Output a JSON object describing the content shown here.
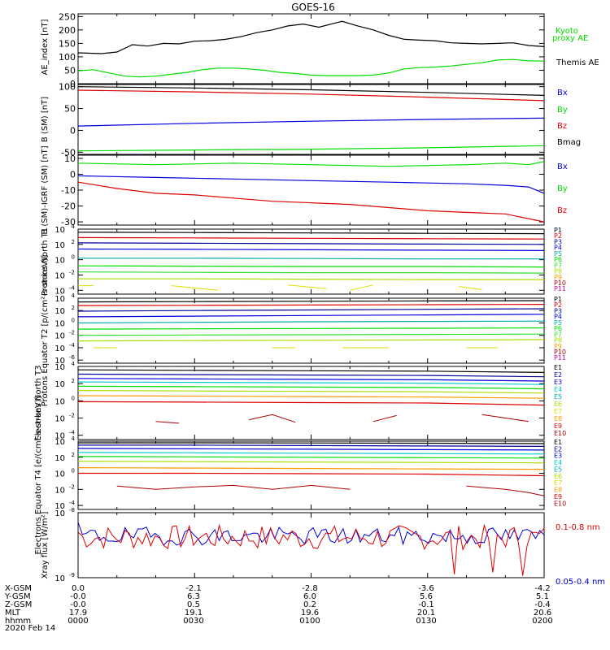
{
  "title": "GOES-16",
  "date_label": "2020 Feb 14",
  "ephemeris": {
    "row_labels": [
      "X-GSM",
      "Y-GSM",
      "Z-GSM",
      "MLT",
      "hhmm"
    ],
    "columns": [
      [
        "0.0",
        "-0.0",
        "-0.0",
        "17.9",
        "0000"
      ],
      [
        "-2.1",
        "6.3",
        "0.5",
        "19.1",
        "0030"
      ],
      [
        "-2.8",
        "6.0",
        "0.2",
        "19.6",
        "0100"
      ],
      [
        "-3.6",
        "5.6",
        "-0.1",
        "20.1",
        "0130"
      ],
      [
        "-4.2",
        "5.1",
        "-0.4",
        "20.6",
        "0200"
      ]
    ]
  },
  "colors": {
    "black": "#000000",
    "green": "#00dd00",
    "blue": "#0000dd",
    "red": "#dd0000",
    "navy": "#000099",
    "teal": "#00aaaa",
    "cyan": "#00cccc",
    "lime": "#33dd33",
    "yellowgreen": "#aadd00",
    "yellow": "#dddd00",
    "orange": "#ff9900",
    "darkred": "#aa0000",
    "magenta": "#cc00aa"
  },
  "chart_data": [
    {
      "type": "line",
      "panel": "ae",
      "ylabel": "AE_index [nT]",
      "ylim": [
        0,
        260
      ],
      "yticks": [
        0,
        50,
        100,
        150,
        200,
        250
      ],
      "x_unit": "minutes since 0000 UT",
      "series": [
        {
          "name": "Themis AE",
          "color": "black",
          "x": [
            0,
            6,
            10,
            14,
            18,
            22,
            26,
            30,
            34,
            38,
            42,
            46,
            50,
            54,
            58,
            62,
            66,
            68,
            72,
            76,
            80,
            84,
            88,
            92,
            96,
            100,
            104,
            108,
            112,
            116,
            120
          ],
          "values": [
            115,
            112,
            118,
            145,
            140,
            150,
            148,
            158,
            160,
            165,
            175,
            190,
            200,
            215,
            222,
            210,
            225,
            232,
            215,
            200,
            180,
            165,
            162,
            160,
            152,
            150,
            148,
            150,
            152,
            142,
            138
          ]
        },
        {
          "name": "Kyoto proxy AE",
          "color": "green",
          "x": [
            0,
            4,
            8,
            12,
            16,
            20,
            24,
            28,
            32,
            36,
            40,
            44,
            48,
            52,
            56,
            60,
            64,
            68,
            72,
            76,
            80,
            84,
            88,
            92,
            96,
            100,
            104,
            108,
            112,
            116,
            120
          ],
          "values": [
            48,
            52,
            40,
            28,
            25,
            28,
            35,
            42,
            52,
            58,
            58,
            55,
            50,
            42,
            38,
            32,
            30,
            30,
            30,
            32,
            40,
            55,
            60,
            62,
            66,
            72,
            78,
            88,
            90,
            85,
            84
          ]
        }
      ],
      "legend": [
        "Kyoto",
        "proxy AE",
        "Themis AE"
      ]
    },
    {
      "type": "line",
      "panel": "bsm",
      "ylabel": "B (SM) [nT]",
      "ylim": [
        -55,
        105
      ],
      "yticks": [
        -50,
        0,
        50,
        100
      ],
      "series": [
        {
          "name": "Bmag",
          "color": "black",
          "x": [
            0,
            30,
            60,
            90,
            120
          ],
          "values": [
            100,
            97,
            93,
            87,
            80
          ]
        },
        {
          "name": "Bz",
          "color": "red",
          "x": [
            0,
            30,
            60,
            90,
            120
          ],
          "values": [
            92,
            88,
            83,
            76,
            68
          ]
        },
        {
          "name": "By",
          "color": "green",
          "x": [
            0,
            30,
            60,
            90,
            120
          ],
          "values": [
            -47,
            -45,
            -43,
            -40,
            -35
          ]
        },
        {
          "name": "Bx",
          "color": "blue",
          "x": [
            0,
            30,
            60,
            90,
            120
          ],
          "values": [
            10,
            16,
            21,
            25,
            28
          ]
        }
      ],
      "legend": [
        "Bx",
        "By",
        "Bz",
        "Bmag"
      ]
    },
    {
      "type": "line",
      "panel": "bigrf",
      "ylabel": "B (SM)-IGRF (SM) [nT]",
      "ylim": [
        -32,
        12
      ],
      "yticks": [
        -30,
        -20,
        -10,
        0,
        10
      ],
      "series": [
        {
          "name": "By",
          "color": "green",
          "x": [
            0,
            20,
            40,
            60,
            80,
            100,
            110,
            116,
            120
          ],
          "values": [
            7,
            6,
            7,
            6,
            5,
            6,
            7,
            6,
            8
          ]
        },
        {
          "name": "Bx",
          "color": "blue",
          "x": [
            0,
            20,
            40,
            60,
            80,
            100,
            110,
            116,
            120
          ],
          "values": [
            -1,
            -2,
            -3,
            -4,
            -5,
            -6,
            -7,
            -8,
            -12
          ]
        },
        {
          "name": "Bz",
          "color": "red",
          "x": [
            0,
            10,
            20,
            30,
            40,
            50,
            60,
            70,
            80,
            90,
            100,
            110,
            114,
            118,
            120
          ],
          "values": [
            -5,
            -9,
            -12,
            -13,
            -15,
            -17,
            -18,
            -19,
            -21,
            -23,
            -24,
            -25,
            -27,
            -29,
            -30
          ]
        }
      ],
      "legend": [
        "Bx",
        "By",
        "Bz"
      ]
    },
    {
      "type": "line",
      "panel": "protons_t1",
      "scale": "log",
      "ylabel": "Protons North T1",
      "ylim": [
        -4.5,
        4
      ],
      "yticks_exp": [
        -4,
        -2,
        0,
        2,
        4
      ],
      "channel_labels": [
        "P1",
        "P2",
        "P3",
        "P4",
        "P5",
        "P6",
        "P7",
        "P8",
        "P9",
        "P10",
        "P11"
      ],
      "series": [
        {
          "name": "P1",
          "color": "black",
          "log10": [
            3.6,
            3.55,
            3.5,
            3.45,
            3.4
          ]
        },
        {
          "name": "P2",
          "color": "red",
          "log10": [
            2.9,
            2.85,
            2.8,
            2.75,
            2.7
          ]
        },
        {
          "name": "P3",
          "color": "navy",
          "log10": [
            2.2,
            2.15,
            2.1,
            2.05,
            2.0
          ]
        },
        {
          "name": "P4",
          "color": "blue",
          "log10": [
            1.4,
            1.35,
            1.3,
            1.25,
            1.2
          ]
        },
        {
          "name": "P5",
          "color": "teal",
          "log10": [
            0.2,
            0.2,
            0.15,
            0.1,
            0.1
          ]
        },
        {
          "name": "P6",
          "color": "green",
          "log10": [
            -0.8,
            -0.85,
            -0.9,
            -0.9,
            -0.95
          ]
        },
        {
          "name": "P7",
          "color": "lime",
          "log10": [
            -1.6,
            -1.65,
            -1.7,
            -1.7,
            -1.75
          ]
        },
        {
          "name": "P8",
          "color": "yellowgreen",
          "log10": [
            -2.5,
            -2.5,
            -2.55,
            -2.6,
            -2.6
          ]
        }
      ],
      "segments": [
        {
          "color": "yellow",
          "x": [
            0,
            4
          ],
          "log10": [
            -3.4,
            -3.4
          ]
        },
        {
          "color": "yellow",
          "x": [
            24,
            36
          ],
          "log10": [
            -3.4,
            -4.0
          ]
        },
        {
          "color": "yellow",
          "x": [
            54,
            64
          ],
          "log10": [
            -3.3,
            -3.8
          ]
        },
        {
          "color": "yellow",
          "x": [
            70,
            76
          ],
          "log10": [
            -4.0,
            -3.3
          ]
        },
        {
          "color": "yellow",
          "x": [
            98,
            104
          ],
          "log10": [
            -3.5,
            -3.9
          ]
        }
      ]
    },
    {
      "type": "line",
      "panel": "protons_t2",
      "scale": "log",
      "ylabel": "Protons Equator T2 [p/(cm²-s-sr-keV)]",
      "ylim": [
        -6.5,
        4
      ],
      "yticks_exp": [
        -6,
        -4,
        -2,
        0,
        2,
        4
      ],
      "channel_labels": [
        "P1",
        "P2",
        "P3",
        "P4",
        "P5",
        "P6",
        "P7",
        "P8",
        "P9",
        "P10",
        "P11"
      ],
      "series": [
        {
          "name": "P1",
          "color": "black",
          "log10": [
            3.4,
            3.45,
            3.5,
            3.55,
            3.6
          ]
        },
        {
          "name": "P2",
          "color": "red",
          "log10": [
            2.8,
            2.85,
            2.9,
            2.95,
            3.0
          ]
        },
        {
          "name": "P3",
          "color": "navy",
          "log10": [
            1.9,
            2.0,
            2.1,
            2.2,
            2.3
          ]
        },
        {
          "name": "P4",
          "color": "blue",
          "log10": [
            1.0,
            1.1,
            1.2,
            1.3,
            1.4
          ]
        },
        {
          "name": "P5",
          "color": "teal",
          "log10": [
            0.0,
            0.1,
            0.2,
            0.25,
            0.3
          ]
        },
        {
          "name": "P6",
          "color": "green",
          "log10": [
            -1.0,
            -0.95,
            -0.9,
            -0.85,
            -0.8
          ]
        },
        {
          "name": "P7",
          "color": "lime",
          "log10": [
            -2.0,
            -1.95,
            -1.9,
            -1.85,
            -1.8
          ]
        },
        {
          "name": "P8",
          "color": "yellowgreen",
          "log10": [
            -2.9,
            -2.85,
            -2.8,
            -2.75,
            -2.7
          ]
        }
      ],
      "segments": [
        {
          "color": "yellow",
          "x": [
            4,
            10
          ],
          "log10": [
            -4.0,
            -4.0
          ]
        },
        {
          "color": "yellow",
          "x": [
            50,
            56
          ],
          "log10": [
            -4.0,
            -4.0
          ]
        },
        {
          "color": "yellow",
          "x": [
            68,
            80
          ],
          "log10": [
            -4.0,
            -4.0
          ]
        },
        {
          "color": "yellow",
          "x": [
            100,
            108
          ],
          "log10": [
            -4.0,
            -4.0
          ]
        }
      ]
    },
    {
      "type": "line",
      "panel": "electrons_t3",
      "scale": "log",
      "ylabel": "Electrons North T3",
      "ylim": [
        -4.5,
        4
      ],
      "yticks_exp": [
        -4,
        -2,
        0,
        2,
        4
      ],
      "channel_labels": [
        "E1",
        "E2",
        "E3",
        "E4",
        "E5",
        "E6",
        "E7",
        "E8",
        "E9",
        "E10"
      ],
      "series": [
        {
          "name": "E1",
          "color": "black",
          "log10": [
            3.6,
            3.55,
            3.5,
            3.45,
            3.3
          ]
        },
        {
          "name": "E2",
          "color": "navy",
          "log10": [
            3.1,
            3.05,
            3.0,
            2.95,
            2.8
          ]
        },
        {
          "name": "E3",
          "color": "blue",
          "log10": [
            2.6,
            2.55,
            2.5,
            2.45,
            2.3
          ]
        },
        {
          "name": "E4",
          "color": "cyan",
          "log10": [
            2.2,
            2.15,
            2.1,
            2.05,
            1.9
          ]
        },
        {
          "name": "E5",
          "color": "green",
          "log10": [
            1.7,
            1.65,
            1.6,
            1.55,
            1.4
          ]
        },
        {
          "name": "E6",
          "color": "yellowgreen",
          "log10": [
            1.2,
            1.15,
            1.1,
            1.05,
            0.9
          ]
        },
        {
          "name": "E7",
          "color": "orange",
          "log10": [
            0.6,
            0.55,
            0.5,
            0.45,
            0.3
          ]
        },
        {
          "name": "E8",
          "color": "red",
          "log10": [
            -0.1,
            -0.15,
            -0.2,
            -0.25,
            -0.5
          ]
        }
      ],
      "segments": [
        {
          "color": "darkred",
          "x": [
            20,
            26
          ],
          "log10": [
            -2.4,
            -2.6
          ]
        },
        {
          "color": "darkred",
          "x": [
            44,
            50,
            56
          ],
          "log10": [
            -2.2,
            -1.6,
            -2.5
          ]
        },
        {
          "color": "darkred",
          "x": [
            76,
            82
          ],
          "log10": [
            -2.4,
            -1.7
          ]
        },
        {
          "color": "darkred",
          "x": [
            104,
            110,
            116
          ],
          "log10": [
            -1.6,
            -2.0,
            -2.4
          ]
        }
      ]
    },
    {
      "type": "line",
      "panel": "electrons_t4",
      "scale": "log",
      "ylabel": "Electrons Equator T4 [e/(cm²-s-sr-keV)]",
      "ylim": [
        -4.5,
        4
      ],
      "yticks_exp": [
        -4,
        -2,
        0,
        2,
        4
      ],
      "channel_labels": [
        "E1",
        "E2",
        "E3",
        "E4",
        "E5",
        "E6",
        "E7",
        "E8",
        "E9",
        "E10"
      ],
      "series": [
        {
          "name": "E1",
          "color": "black",
          "log10": [
            3.8,
            3.8,
            3.78,
            3.75,
            3.7
          ]
        },
        {
          "name": "E2",
          "color": "navy",
          "log10": [
            3.5,
            3.5,
            3.45,
            3.4,
            3.35
          ]
        },
        {
          "name": "E3",
          "color": "blue",
          "log10": [
            3.1,
            3.05,
            3.0,
            2.95,
            2.9
          ]
        },
        {
          "name": "E4",
          "color": "cyan",
          "log10": [
            2.6,
            2.55,
            2.5,
            2.45,
            2.4
          ]
        },
        {
          "name": "E5",
          "color": "green",
          "log10": [
            2.1,
            2.05,
            2.0,
            1.95,
            1.9
          ]
        },
        {
          "name": "E6",
          "color": "yellowgreen",
          "log10": [
            1.5,
            1.45,
            1.4,
            1.35,
            1.3
          ]
        },
        {
          "name": "E7",
          "color": "orange",
          "log10": [
            0.7,
            0.65,
            0.6,
            0.55,
            0.5
          ]
        },
        {
          "name": "E8",
          "color": "red",
          "log10": [
            0.0,
            0.0,
            -0.05,
            -0.1,
            -0.3
          ]
        }
      ],
      "segments": [
        {
          "color": "darkred",
          "x": [
            10,
            20,
            30,
            40,
            50,
            60,
            70
          ],
          "log10": [
            -1.6,
            -2.0,
            -1.7,
            -1.5,
            -2.0,
            -1.5,
            -2.0
          ]
        },
        {
          "color": "darkred",
          "x": [
            100,
            110,
            116,
            120
          ],
          "log10": [
            -1.6,
            -2.0,
            -2.4,
            -2.8
          ]
        }
      ]
    },
    {
      "type": "line",
      "panel": "xray",
      "scale": "log",
      "ylabel": "Xray flux [W/m²]",
      "ylim": [
        -9,
        -8
      ],
      "yticks_exp": [
        -9,
        -8
      ],
      "series": [
        {
          "name": "0.1-0.8 nm",
          "color": "red"
        },
        {
          "name": "0.05-0.4 nm",
          "color": "blue"
        }
      ],
      "legend": [
        "0.1-0.8 nm",
        "0.05-0.4 nm"
      ]
    }
  ]
}
